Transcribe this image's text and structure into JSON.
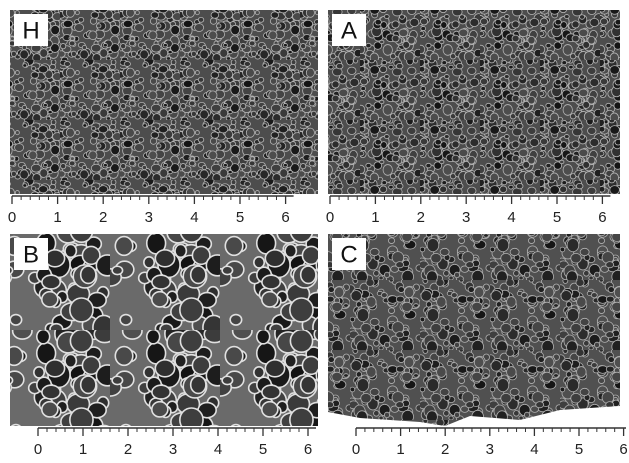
{
  "panels": [
    {
      "label": "H",
      "ruler_ticks": [
        0,
        1,
        2,
        3,
        4,
        5,
        6
      ]
    },
    {
      "label": "A",
      "ruler_ticks": [
        0,
        1,
        2,
        3,
        4,
        5,
        6
      ]
    },
    {
      "label": "B",
      "ruler_ticks": [
        0,
        1,
        2,
        3,
        4,
        5,
        6
      ]
    },
    {
      "label": "C",
      "ruler_ticks": [
        0,
        1,
        2,
        3,
        4,
        5,
        6
      ]
    }
  ]
}
